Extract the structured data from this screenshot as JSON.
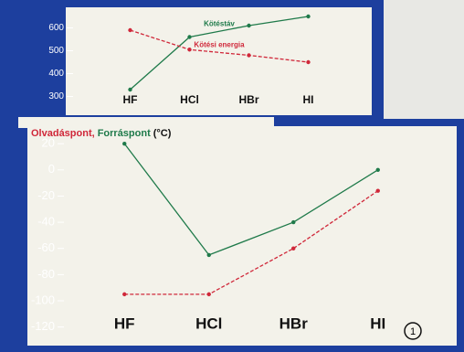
{
  "chart_data": [
    {
      "type": "line",
      "categories": [
        "HF",
        "HCl",
        "HBr",
        "HI"
      ],
      "series": [
        {
          "name": "Kötéstáv",
          "color": "#1f7a4a",
          "dash": false,
          "values": [
            330,
            560,
            610,
            650
          ]
        },
        {
          "name": "Kötési energia",
          "color": "#d0283a",
          "dash": true,
          "values": [
            590,
            505,
            480,
            450
          ]
        }
      ],
      "ylim": [
        250,
        650
      ],
      "yticks": [
        300,
        400,
        500,
        600
      ]
    },
    {
      "type": "line",
      "categories": [
        "HF",
        "HCl",
        "HBr",
        "HI"
      ],
      "y_label": "(°C)",
      "series": [
        {
          "name": "Olvadáspont,",
          "color": "#d0283a",
          "dash": true,
          "values": [
            -95,
            -95,
            -60,
            -16
          ]
        },
        {
          "name": "Forráspont",
          "color": "#1f7a4a",
          "dash": false,
          "values": [
            20,
            -65,
            -40,
            0
          ]
        }
      ],
      "ylim": [
        -130,
        25
      ],
      "yticks": [
        20,
        0,
        -20,
        -40,
        -60,
        -80,
        -100,
        -120
      ]
    }
  ],
  "page_number": "1"
}
